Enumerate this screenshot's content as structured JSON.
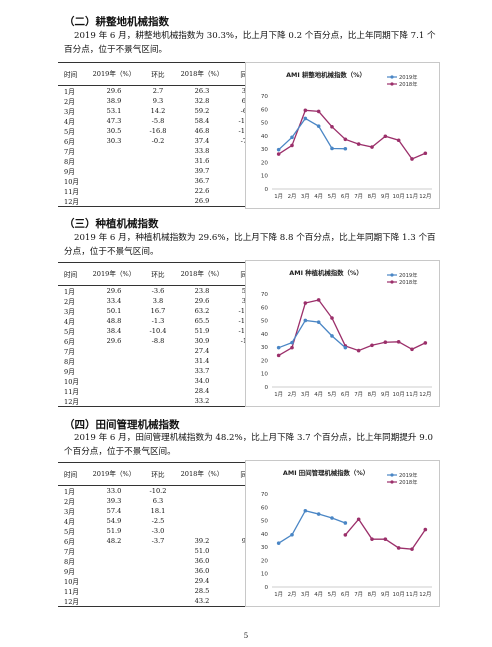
{
  "sections": [
    {
      "heading": "（二）耕整地机械指数",
      "paragraph": "2019 年 6 月，耕整地机械指数为 30.3%，比上月下降 0.2 个百分点，比上年同期下降 7.1 个百分点，位于不景气区间。",
      "table": {
        "headers": [
          "时间",
          "2019年（%）",
          "环比",
          "2018年（%）",
          "同比"
        ],
        "rows": [
          [
            "1月",
            "29.6",
            "2.7",
            "26.3",
            "3.3"
          ],
          [
            "2月",
            "38.9",
            "9.3",
            "32.8",
            "6.1"
          ],
          [
            "3月",
            "53.1",
            "14.2",
            "59.2",
            "-6.1"
          ],
          [
            "4月",
            "47.3",
            "-5.8",
            "58.4",
            "-11.1"
          ],
          [
            "5月",
            "30.5",
            "-16.8",
            "46.8",
            "-16.3"
          ],
          [
            "6月",
            "30.3",
            "-0.2",
            "37.4",
            "-7.1"
          ],
          [
            "7月",
            "",
            "",
            "33.8",
            ""
          ],
          [
            "8月",
            "",
            "",
            "31.6",
            ""
          ],
          [
            "9月",
            "",
            "",
            "39.7",
            ""
          ],
          [
            "10月",
            "",
            "",
            "36.7",
            ""
          ],
          [
            "11月",
            "",
            "",
            "22.6",
            ""
          ],
          [
            "12月",
            "",
            "",
            "26.9",
            ""
          ]
        ]
      }
    },
    {
      "heading": "（三）种植机械指数",
      "paragraph": "2019 年 6 月，种植机械指数为 29.6%，比上月下降 8.8 个百分点，比上年同期下降 1.3 个百分点，位于不景气区间。",
      "table": {
        "headers": [
          "时间",
          "2019年（%）",
          "环比",
          "2018年（%）",
          "同比"
        ],
        "rows": [
          [
            "1月",
            "29.6",
            "-3.6",
            "23.8",
            "5.8"
          ],
          [
            "2月",
            "33.4",
            "3.8",
            "29.6",
            "3.8"
          ],
          [
            "3月",
            "50.1",
            "16.7",
            "63.2",
            "-13.1"
          ],
          [
            "4月",
            "48.8",
            "-1.3",
            "65.5",
            "-16.7"
          ],
          [
            "5月",
            "38.4",
            "-10.4",
            "51.9",
            "-13.5"
          ],
          [
            "6月",
            "29.6",
            "-8.8",
            "30.9",
            "-1.3"
          ],
          [
            "7月",
            "",
            "",
            "27.4",
            ""
          ],
          [
            "8月",
            "",
            "",
            "31.4",
            ""
          ],
          [
            "9月",
            "",
            "",
            "33.7",
            ""
          ],
          [
            "10月",
            "",
            "",
            "34.0",
            ""
          ],
          [
            "11月",
            "",
            "",
            "28.4",
            ""
          ],
          [
            "12月",
            "",
            "",
            "33.2",
            ""
          ]
        ]
      }
    },
    {
      "heading": "（四）田间管理机械指数",
      "paragraph": "2019 年 6 月，田间管理机械指数为 48.2%，比上月下降 3.7 个百分点，比上年同期提升 9.0 个百分点，位于不景气区间。",
      "table": {
        "headers": [
          "时间",
          "2019年（%）",
          "环比",
          "2018年（%）",
          "同比"
        ],
        "rows": [
          [
            "1月",
            "33.0",
            "-10.2",
            "",
            ""
          ],
          [
            "2月",
            "39.3",
            "6.3",
            "",
            ""
          ],
          [
            "3月",
            "57.4",
            "18.1",
            "",
            ""
          ],
          [
            "4月",
            "54.9",
            "-2.5",
            "",
            ""
          ],
          [
            "5月",
            "51.9",
            "-3.0",
            "",
            ""
          ],
          [
            "6月",
            "48.2",
            "-3.7",
            "39.2",
            "9.0"
          ],
          [
            "7月",
            "",
            "",
            "51.0",
            ""
          ],
          [
            "8月",
            "",
            "",
            "36.0",
            ""
          ],
          [
            "9月",
            "",
            "",
            "36.0",
            ""
          ],
          [
            "10月",
            "",
            "",
            "29.4",
            ""
          ],
          [
            "11月",
            "",
            "",
            "28.5",
            ""
          ],
          [
            "12月",
            "",
            "",
            "43.2",
            ""
          ]
        ]
      }
    }
  ],
  "chart_data": [
    {
      "type": "line",
      "title": "AMI 耕整地机械指数（%）",
      "categories": [
        "1月",
        "2月",
        "3月",
        "4月",
        "5月",
        "6月",
        "7月",
        "8月",
        "9月",
        "10月",
        "11月",
        "12月"
      ],
      "ylim": [
        0,
        70
      ],
      "yticks": [
        0,
        10,
        20,
        30,
        40,
        50,
        60,
        70
      ],
      "legend_position": "top-right",
      "series": [
        {
          "name": "2019年",
          "color": "#4a86c5",
          "values": [
            29.6,
            38.9,
            53.1,
            47.3,
            30.5,
            30.3,
            null,
            null,
            null,
            null,
            null,
            null
          ]
        },
        {
          "name": "2018年",
          "color": "#9b2f6a",
          "values": [
            26.3,
            32.8,
            59.2,
            58.4,
            46.8,
            37.4,
            33.8,
            31.6,
            39.7,
            36.7,
            22.6,
            26.9
          ]
        }
      ]
    },
    {
      "type": "line",
      "title": "AMI 种植机械指数（%）",
      "categories": [
        "1月",
        "2月",
        "3月",
        "4月",
        "5月",
        "6月",
        "7月",
        "8月",
        "9月",
        "10月",
        "11月",
        "12月"
      ],
      "ylim": [
        0,
        70
      ],
      "yticks": [
        0,
        10,
        20,
        30,
        40,
        50,
        60,
        70
      ],
      "legend_position": "top-right",
      "series": [
        {
          "name": "2019年",
          "color": "#4a86c5",
          "values": [
            29.6,
            33.4,
            50.1,
            48.8,
            38.4,
            29.6,
            null,
            null,
            null,
            null,
            null,
            null
          ]
        },
        {
          "name": "2018年",
          "color": "#9b2f6a",
          "values": [
            23.8,
            29.6,
            63.2,
            65.5,
            51.9,
            30.9,
            27.4,
            31.4,
            33.7,
            34.0,
            28.4,
            33.2
          ]
        }
      ]
    },
    {
      "type": "line",
      "title": "AMI 田间管理机械指数（%）",
      "categories": [
        "1月",
        "2月",
        "3月",
        "4月",
        "5月",
        "6月",
        "7月",
        "8月",
        "9月",
        "10月",
        "11月",
        "12月"
      ],
      "ylim": [
        0,
        70
      ],
      "yticks": [
        0,
        10,
        20,
        30,
        40,
        50,
        60,
        70
      ],
      "legend_position": "top-right",
      "series": [
        {
          "name": "2019年",
          "color": "#4a86c5",
          "values": [
            33.0,
            39.3,
            57.4,
            54.9,
            51.9,
            48.2,
            null,
            null,
            null,
            null,
            null,
            null
          ]
        },
        {
          "name": "2018年",
          "color": "#9b2f6a",
          "values": [
            null,
            null,
            null,
            null,
            null,
            39.2,
            51.0,
            36.0,
            36.0,
            29.4,
            28.5,
            43.2
          ]
        }
      ]
    }
  ],
  "page_number": "5"
}
